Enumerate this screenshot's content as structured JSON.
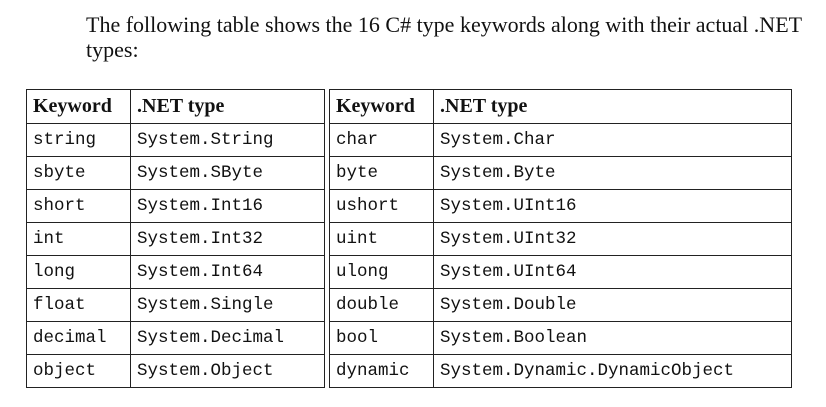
{
  "intro_text": "The following table shows the 16 C# type keywords along with their actual .NET types:",
  "tables": [
    {
      "headers": [
        "Keyword",
        ".NET type"
      ],
      "rows": [
        [
          "string",
          "System.String"
        ],
        [
          "sbyte",
          "System.SByte"
        ],
        [
          "short",
          "System.Int16"
        ],
        [
          "int",
          "System.Int32"
        ],
        [
          "long",
          "System.Int64"
        ],
        [
          "float",
          "System.Single"
        ],
        [
          "decimal",
          "System.Decimal"
        ],
        [
          "object",
          "System.Object"
        ]
      ]
    },
    {
      "headers": [
        "Keyword",
        ".NET type"
      ],
      "rows": [
        [
          "char",
          "System.Char"
        ],
        [
          "byte",
          "System.Byte"
        ],
        [
          "ushort",
          "System.UInt16"
        ],
        [
          "uint",
          "System.UInt32"
        ],
        [
          "ulong",
          "System.UInt64"
        ],
        [
          "double",
          "System.Double"
        ],
        [
          "bool",
          "System.Boolean"
        ],
        [
          "dynamic",
          "System.Dynamic.DynamicObject"
        ]
      ]
    }
  ]
}
